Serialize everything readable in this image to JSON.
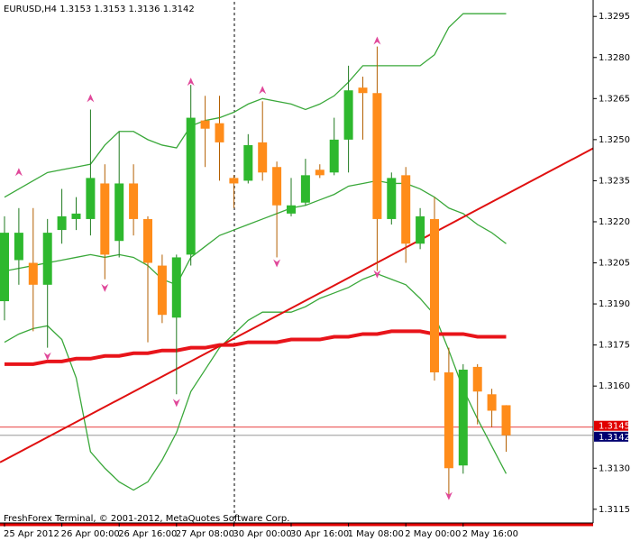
{
  "chart_data": {
    "type": "candlestick",
    "title": "EURUSD,H4  1.3153 1.3153 1.3136 1.3142",
    "footer": "FreshForex Terminal, © 2001-2012, MetaQuotes Software Corp.",
    "categories": [
      "25 Apr 2012",
      null,
      null,
      null,
      "26 Apr 00:00",
      null,
      null,
      null,
      "26 Apr 16:00",
      null,
      null,
      null,
      "27 Apr 08:00",
      null,
      null,
      null,
      "30 Apr 00:00",
      null,
      null,
      null,
      "30 Apr 16:00",
      null,
      null,
      null,
      "1 May 08:00",
      null,
      null,
      null,
      "2 May 00:00",
      null,
      null,
      null,
      "2 May 16:00",
      null,
      null,
      null
    ],
    "open": [
      1.3191,
      1.3206,
      1.3205,
      1.3197,
      1.3217,
      1.3221,
      1.3221,
      1.3234,
      1.3213,
      1.3234,
      1.3221,
      1.3204,
      1.3185,
      1.3208,
      1.3257,
      1.3256,
      1.3236,
      1.3235,
      1.3249,
      1.324,
      1.3223,
      1.3227,
      1.3239,
      1.3238,
      1.325,
      1.3269,
      1.3267,
      1.3221,
      1.3237,
      1.3212,
      1.3221,
      1.3165,
      1.3131,
      1.3167,
      1.3157,
      1.3153
    ],
    "high": [
      1.3222,
      1.3225,
      1.3225,
      1.3221,
      1.3232,
      1.3229,
      1.3261,
      1.3241,
      1.3253,
      1.3241,
      1.3222,
      1.3208,
      1.3208,
      1.327,
      1.3266,
      1.3266,
      1.3237,
      1.3252,
      1.3264,
      1.3242,
      1.3236,
      1.3243,
      1.3241,
      1.3258,
      1.3277,
      1.3273,
      1.3284,
      1.3238,
      1.324,
      1.3225,
      1.3229,
      1.3174,
      1.3168,
      1.3168,
      1.3159,
      1.3153
    ],
    "low": [
      1.3184,
      1.3197,
      1.318,
      1.3174,
      1.3212,
      1.3217,
      1.3215,
      1.3199,
      1.3207,
      1.3215,
      1.3176,
      1.3183,
      1.3157,
      1.3204,
      1.324,
      1.3235,
      1.3225,
      1.3234,
      1.3235,
      1.3207,
      1.3222,
      1.3226,
      1.3236,
      1.3237,
      1.3238,
      1.325,
      1.3202,
      1.3219,
      1.3205,
      1.321,
      1.3162,
      1.312,
      1.3128,
      1.3146,
      1.3145,
      1.3136
    ],
    "close": [
      1.3216,
      1.3216,
      1.3197,
      1.3216,
      1.3222,
      1.3223,
      1.3236,
      1.3208,
      1.3234,
      1.3221,
      1.3205,
      1.3186,
      1.3207,
      1.3258,
      1.3254,
      1.3249,
      1.3234,
      1.3248,
      1.3238,
      1.3226,
      1.3226,
      1.3237,
      1.3237,
      1.325,
      1.3268,
      1.3267,
      1.3221,
      1.3236,
      1.3212,
      1.3222,
      1.3165,
      1.313,
      1.3166,
      1.3158,
      1.3151,
      1.3142
    ],
    "up_color": "#2eb82e",
    "down_color": "#ff8c1a",
    "lines": [
      {
        "color": "#3aa83a",
        "width": 1.3,
        "values": [
          1.3229,
          1.3232,
          1.3235,
          1.3238,
          1.3239,
          1.324,
          1.3241,
          1.3248,
          1.3253,
          1.3253,
          1.325,
          1.3248,
          1.3247,
          1.3255,
          1.3257,
          1.3258,
          1.326,
          1.3263,
          1.3265,
          1.3264,
          1.3263,
          1.3261,
          1.3263,
          1.3266,
          1.3271,
          1.3277,
          1.3277,
          1.3277,
          1.3277,
          1.3277,
          1.3281,
          1.3291,
          1.3296,
          1.3296,
          1.3296,
          1.3296
        ]
      },
      {
        "color": "#3aa83a",
        "width": 1.3,
        "values": [
          1.3202,
          1.3203,
          1.3204,
          1.3205,
          1.3206,
          1.3207,
          1.3208,
          1.3207,
          1.3208,
          1.3207,
          1.3204,
          1.3199,
          1.3197,
          1.3207,
          1.3211,
          1.3215,
          1.3217,
          1.3219,
          1.3221,
          1.3223,
          1.3225,
          1.3226,
          1.3228,
          1.323,
          1.3233,
          1.3234,
          1.3235,
          1.3234,
          1.3234,
          1.3232,
          1.3229,
          1.3225,
          1.3223,
          1.3219,
          1.3216,
          1.3212
        ]
      },
      {
        "color": "#3aa83a",
        "width": 1.3,
        "values": [
          1.3176,
          1.3179,
          1.3181,
          1.3182,
          1.3177,
          1.3163,
          1.3136,
          1.313,
          1.3125,
          1.3122,
          1.3125,
          1.3133,
          1.3143,
          1.3158,
          1.3166,
          1.3174,
          1.3179,
          1.3184,
          1.3187,
          1.3187,
          1.3187,
          1.3189,
          1.3192,
          1.3194,
          1.3196,
          1.3199,
          1.3201,
          1.3199,
          1.3197,
          1.3192,
          1.3186,
          1.3173,
          1.3159,
          1.3148,
          1.3138,
          1.3128
        ]
      },
      {
        "color": "#e8141a",
        "width": 4,
        "values": [
          1.3168,
          1.3168,
          1.3168,
          1.3169,
          1.3169,
          1.317,
          1.317,
          1.3171,
          1.3171,
          1.3172,
          1.3172,
          1.3173,
          1.3173,
          1.3174,
          1.3174,
          1.3175,
          1.3175,
          1.3176,
          1.3176,
          1.3176,
          1.3177,
          1.3177,
          1.3177,
          1.3178,
          1.3178,
          1.3179,
          1.3179,
          1.318,
          1.318,
          1.318,
          1.3179,
          1.3179,
          1.3179,
          1.3178,
          1.3178,
          1.3178
        ]
      }
    ],
    "trendline": {
      "color": "#e01010",
      "values": [
        1.3133,
        1.323
      ]
    },
    "fractals_up": [
      null,
      1.3238,
      null,
      null,
      null,
      null,
      1.3265,
      null,
      null,
      null,
      null,
      null,
      null,
      1.3271,
      null,
      null,
      null,
      null,
      1.3268,
      null,
      null,
      null,
      null,
      null,
      null,
      null,
      1.3286,
      null,
      null,
      null,
      null,
      null,
      null,
      null,
      null,
      null
    ],
    "fractals_down": [
      null,
      null,
      null,
      1.3171,
      null,
      null,
      null,
      1.3196,
      null,
      null,
      null,
      null,
      1.3154,
      null,
      null,
      null,
      null,
      null,
      null,
      1.3205,
      null,
      null,
      null,
      null,
      null,
      null,
      1.3201,
      null,
      null,
      null,
      null,
      1.312,
      null,
      null,
      null,
      null
    ],
    "fractal_color": "#e0489a",
    "ask_line": {
      "value": 1.3145,
      "label": "1.3145",
      "color": "#e00000"
    },
    "bid_line": {
      "value": 1.3142,
      "label": "1.3142",
      "color": "#000070"
    },
    "ylim": [
      1.311,
      1.3301
    ],
    "yticks": [
      {
        "value": 1.3295,
        "label": "1.3295"
      },
      {
        "value": 1.328,
        "label": "1.3280"
      },
      {
        "value": 1.3265,
        "label": "1.3265"
      },
      {
        "value": 1.325,
        "label": "1.3250"
      },
      {
        "value": 1.3235,
        "label": "1.3235"
      },
      {
        "value": 1.322,
        "label": "1.3220"
      },
      {
        "value": 1.3205,
        "label": "1.3205"
      },
      {
        "value": 1.319,
        "label": "1.3190"
      },
      {
        "value": 1.3175,
        "label": "1.3175"
      },
      {
        "value": 1.316,
        "label": "1.3160"
      },
      {
        "value": 1.313,
        "label": "1.3130"
      },
      {
        "value": 1.3115,
        "label": "1.3115"
      }
    ]
  }
}
